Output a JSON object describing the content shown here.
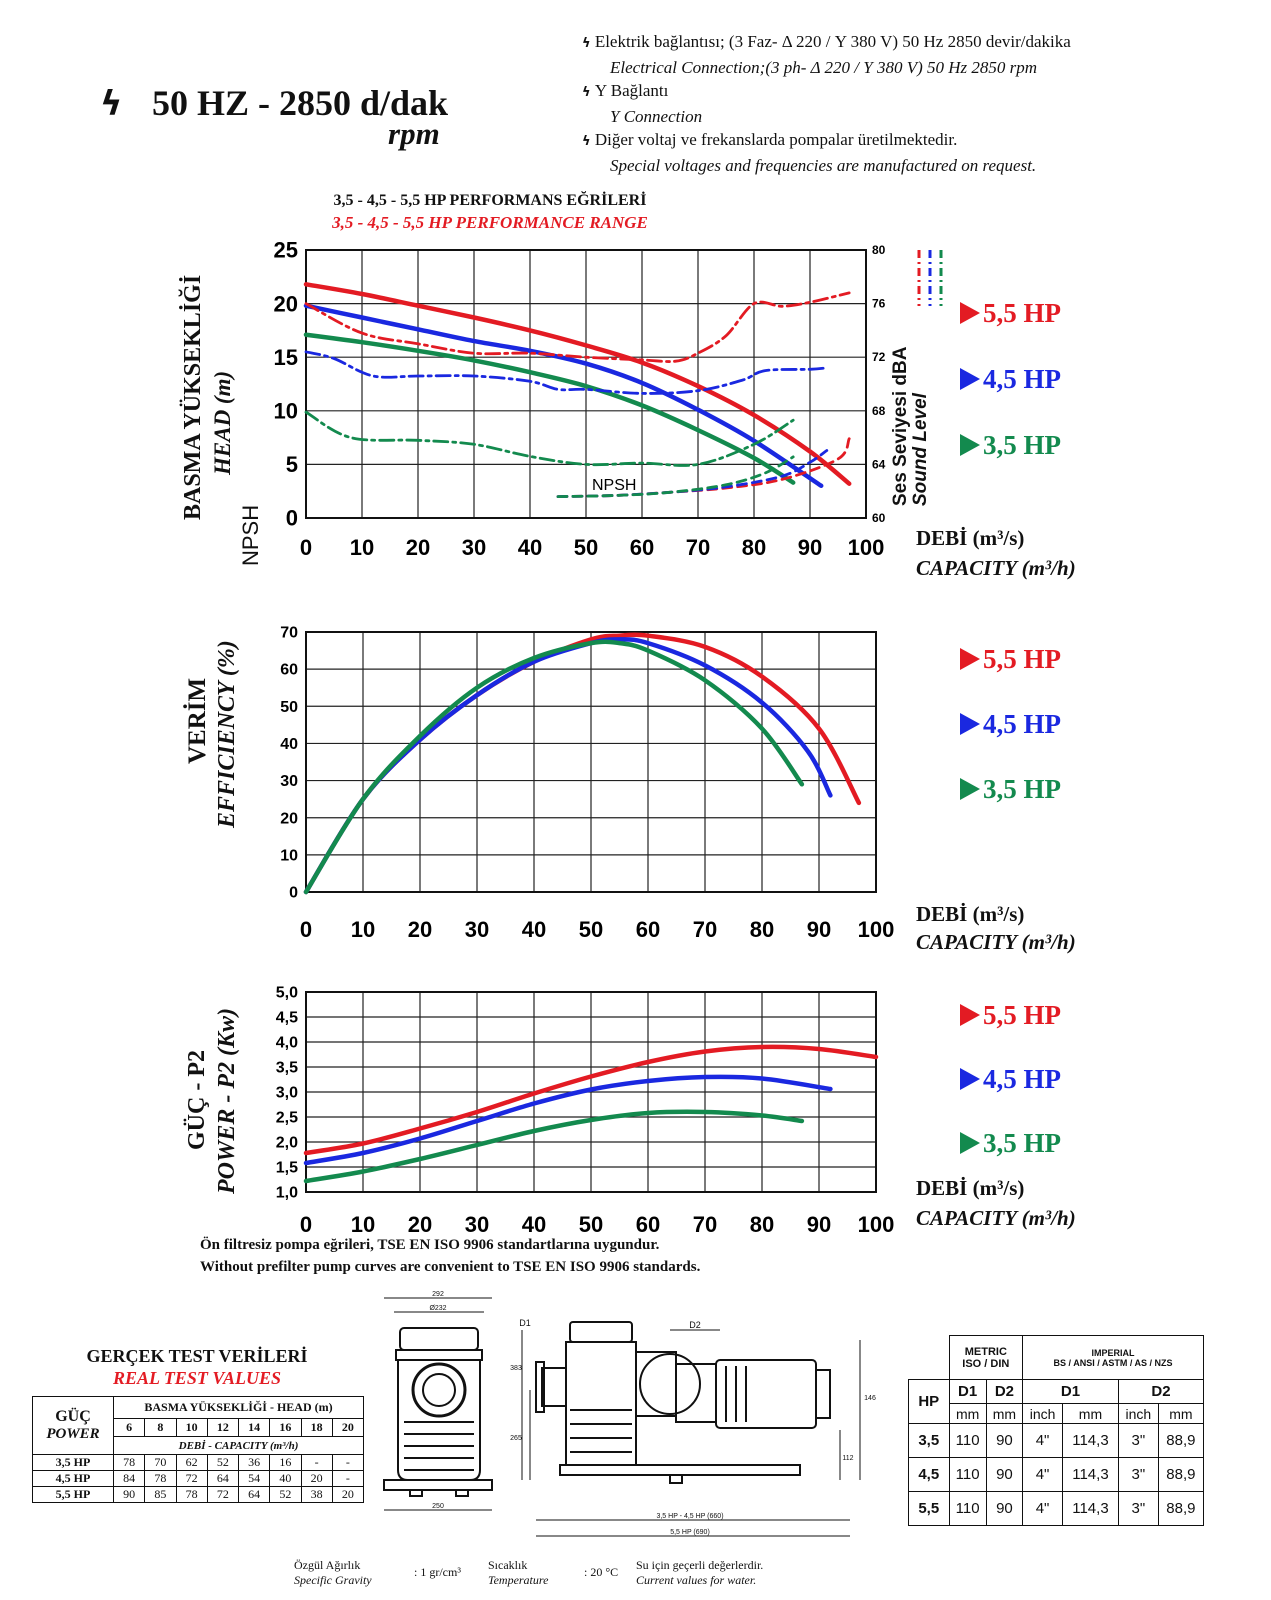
{
  "header": {
    "freq_title": "50 HZ - 2850 d/dak",
    "rpm": "rpm",
    "notes": [
      {
        "tr": "Elektrik bağlantısı; (3 Faz- Δ 220 / Y 380 V) 50 Hz 2850 devir/dakika",
        "en": "Electrical Connection;(3 ph- Δ 220 / Y 380 V) 50 Hz 2850 rpm"
      },
      {
        "tr": "Y Bağlantı",
        "en": "Y Connection"
      },
      {
        "tr": "Diğer voltaj ve frekanslarda pompalar üretilmektedir.",
        "en": "Special voltages and frequencies  are manufactured on request."
      }
    ]
  },
  "legend": {
    "hp55": "5,5 HP",
    "hp45": "4,5 HP",
    "hp35": "3,5 HP"
  },
  "colors": {
    "hp55": "#e31b23",
    "hp45": "#1a28e0",
    "hp35": "#138a4e"
  },
  "x_label_tr": "DEBİ (m³/s)",
  "x_label_en": "CAPACITY (m³/h)",
  "chart_data": [
    {
      "type": "line",
      "title": "3,5 - 4,5 - 5,5 HP PERFORMANS EĞRİLERİ",
      "subtitle": "3,5 - 4,5 - 5,5 HP PERFORMANCE RANGE",
      "ylabel_tr": "BASMA YÜKSEKLİĞİ",
      "ylabel_en": "HEAD (m)",
      "ylabel_npsh": "NPSH",
      "y2label_tr": "Ses Seviyesi dBA",
      "y2label_en": "Sound Level",
      "npsh_label": "NPSH",
      "xlim": [
        0,
        100
      ],
      "ylim": [
        0,
        25
      ],
      "y2lim": [
        60,
        80
      ],
      "x_ticks": [
        "0",
        "10",
        "20",
        "30",
        "40",
        "50",
        "60",
        "70",
        "80",
        "90",
        "100"
      ],
      "y_ticks": [
        "0",
        "5",
        "10",
        "15",
        "20",
        "25"
      ],
      "y2_ticks": [
        "60",
        "64",
        "68",
        "72",
        "76",
        "80"
      ],
      "series": [
        {
          "name": "5,5 HP",
          "kind": "head",
          "x": [
            0,
            10,
            20,
            30,
            40,
            50,
            60,
            70,
            80,
            90,
            97
          ],
          "y": [
            21.8,
            20.9,
            19.8,
            18.7,
            17.5,
            16.1,
            14.5,
            12.3,
            9.6,
            6.2,
            3.2
          ]
        },
        {
          "name": "4,5 HP",
          "kind": "head",
          "x": [
            0,
            10,
            20,
            30,
            40,
            50,
            60,
            70,
            80,
            92
          ],
          "y": [
            19.8,
            18.7,
            17.6,
            16.5,
            15.6,
            14.4,
            12.6,
            10.1,
            7.2,
            3.0
          ]
        },
        {
          "name": "3,5 HP",
          "kind": "head",
          "x": [
            0,
            10,
            20,
            30,
            40,
            50,
            60,
            70,
            80,
            87
          ],
          "y": [
            17.1,
            16.4,
            15.6,
            14.7,
            13.6,
            12.3,
            10.5,
            8.2,
            5.6,
            3.3
          ]
        },
        {
          "name": "5,5 HP",
          "kind": "sound",
          "x": [
            0,
            10,
            20,
            30,
            40,
            50,
            60,
            66,
            70,
            75,
            80,
            85,
            90,
            97
          ],
          "y": [
            76.0,
            73.8,
            73.0,
            72.3,
            72.3,
            72.0,
            71.8,
            71.7,
            72.3,
            73.6,
            76.0,
            75.8,
            76.1,
            76.8
          ]
        },
        {
          "name": "4,5 HP",
          "kind": "sound",
          "x": [
            0,
            5,
            12,
            20,
            30,
            40,
            45,
            50,
            60,
            70,
            78,
            82,
            90,
            93
          ],
          "y": [
            72.4,
            71.9,
            70.6,
            70.6,
            70.6,
            70.2,
            69.6,
            69.6,
            69.3,
            69.5,
            70.3,
            71.0,
            71.1,
            71.2
          ]
        },
        {
          "name": "3,5 HP",
          "kind": "sound",
          "x": [
            0,
            8,
            20,
            30,
            40,
            50,
            60,
            70,
            80,
            87
          ],
          "y": [
            67.9,
            66.0,
            65.8,
            65.5,
            64.6,
            64.0,
            64.1,
            64.0,
            65.5,
            67.3
          ]
        },
        {
          "name": "5,5 HP",
          "kind": "npsh",
          "x": [
            45,
            55,
            65,
            75,
            85,
            95,
            97
          ],
          "y": [
            2.0,
            2.1,
            2.4,
            2.8,
            3.6,
            5.5,
            7.4
          ]
        },
        {
          "name": "4,5 HP",
          "kind": "npsh",
          "x": [
            45,
            55,
            65,
            75,
            85,
            90,
            93
          ],
          "y": [
            2.0,
            2.1,
            2.4,
            2.9,
            3.9,
            5.2,
            6.3
          ]
        },
        {
          "name": "3,5 HP",
          "kind": "npsh",
          "x": [
            45,
            55,
            65,
            75,
            82,
            87
          ],
          "y": [
            2.0,
            2.1,
            2.4,
            3.1,
            4.2,
            5.7
          ]
        }
      ]
    },
    {
      "type": "line",
      "ylabel_tr": "VERİM",
      "ylabel_en": "EFFICIENCY (%)",
      "xlim": [
        0,
        100
      ],
      "ylim": [
        0,
        70
      ],
      "x_ticks": [
        "0",
        "10",
        "20",
        "30",
        "40",
        "50",
        "60",
        "70",
        "80",
        "90",
        "100"
      ],
      "y_ticks": [
        "0",
        "10",
        "20",
        "30",
        "40",
        "50",
        "60",
        "70"
      ],
      "series": [
        {
          "name": "5,5 HP",
          "x": [
            0,
            10,
            20,
            30,
            40,
            50,
            55,
            60,
            70,
            80,
            90,
            97
          ],
          "y": [
            0,
            25,
            41,
            53,
            62,
            68,
            69,
            69,
            66,
            58,
            44,
            24
          ]
        },
        {
          "name": "4,5 HP",
          "x": [
            0,
            10,
            20,
            30,
            40,
            50,
            55,
            60,
            70,
            80,
            88,
            92
          ],
          "y": [
            0,
            25,
            41,
            53,
            62,
            67,
            68,
            67,
            61,
            51,
            38,
            26
          ]
        },
        {
          "name": "3,5 HP",
          "x": [
            0,
            10,
            20,
            30,
            40,
            50,
            55,
            60,
            70,
            80,
            87
          ],
          "y": [
            0,
            25,
            42,
            55,
            63,
            67,
            67,
            65,
            57,
            44,
            29
          ]
        }
      ]
    },
    {
      "type": "line",
      "ylabel_tr": "GÜÇ - P2",
      "ylabel_en": "POWER - P2 (Kw)",
      "xlim": [
        0,
        100
      ],
      "ylim": [
        1.0,
        5.0
      ],
      "x_ticks": [
        "0",
        "10",
        "20",
        "30",
        "40",
        "50",
        "60",
        "70",
        "80",
        "90",
        "100"
      ],
      "y_ticks": [
        "1,0",
        "1,5",
        "2,0",
        "2,5",
        "3,0",
        "3,5",
        "4,0",
        "4,5",
        "5,0"
      ],
      "series": [
        {
          "name": "5,5 HP",
          "x": [
            0,
            10,
            20,
            30,
            40,
            50,
            60,
            70,
            80,
            90,
            100
          ],
          "y": [
            1.78,
            1.97,
            2.27,
            2.6,
            2.97,
            3.31,
            3.6,
            3.81,
            3.9,
            3.86,
            3.7
          ]
        },
        {
          "name": "4,5 HP",
          "x": [
            0,
            10,
            20,
            30,
            40,
            50,
            60,
            70,
            80,
            92
          ],
          "y": [
            1.58,
            1.78,
            2.07,
            2.42,
            2.77,
            3.05,
            3.22,
            3.3,
            3.27,
            3.06
          ]
        },
        {
          "name": "3,5 HP",
          "x": [
            0,
            10,
            20,
            30,
            40,
            50,
            60,
            70,
            80,
            87
          ],
          "y": [
            1.22,
            1.41,
            1.66,
            1.94,
            2.22,
            2.44,
            2.58,
            2.6,
            2.53,
            2.42
          ]
        }
      ]
    }
  ],
  "standard_note": {
    "tr": "Ön filtresiz pompa eğrileri, TSE EN ISO 9906 standartlarına uygundur.",
    "en": "Without prefilter pump curves are convenient to TSE EN ISO 9906 standards."
  },
  "test_table": {
    "title_tr": "GERÇEK TEST VERİLERİ",
    "title_en": "REAL TEST VALUES",
    "power_tr": "GÜÇ",
    "power_en": "POWER",
    "head_header": "BASMA YÜKSEKLİĞİ - HEAD (m)",
    "capacity_header": "DEBİ - CAPACITY (m³/h)",
    "heads": [
      "6",
      "8",
      "10",
      "12",
      "14",
      "16",
      "18",
      "20"
    ],
    "rows": [
      {
        "hp": "3,5 HP",
        "values": [
          "78",
          "70",
          "62",
          "52",
          "36",
          "16",
          "-",
          "-"
        ]
      },
      {
        "hp": "4,5 HP",
        "values": [
          "84",
          "78",
          "72",
          "64",
          "54",
          "40",
          "20",
          "-"
        ]
      },
      {
        "hp": "5,5 HP",
        "values": [
          "90",
          "85",
          "78",
          "72",
          "64",
          "52",
          "38",
          "20"
        ]
      }
    ]
  },
  "drawing": {
    "dim_top": "292",
    "dim_phi": "Ø232",
    "dim_base": "250",
    "d1": "D1",
    "d2": "D2",
    "h_left": "383",
    "h_left2": "265",
    "h_right": "146",
    "h_right2": "112",
    "len_a": "3,5 HP - 4,5 HP (660)",
    "len_b": "5,5 HP (690)"
  },
  "dim_table": {
    "metric": "METRIC",
    "metric_sub": "ISO / DIN",
    "imperial": "IMPERIAL",
    "imperial_sub": "BS / ANSI / ASTM / AS /  NZS",
    "hp": "HP",
    "d1": "D1",
    "d2": "D2",
    "units": [
      "mm",
      "mm",
      "inch",
      "mm",
      "inch",
      "mm"
    ],
    "rows": [
      {
        "hp": "3,5",
        "values": [
          "110",
          "90",
          "4\"",
          "114,3",
          "3\"",
          "88,9"
        ]
      },
      {
        "hp": "4,5",
        "values": [
          "110",
          "90",
          "4\"",
          "114,3",
          "3\"",
          "88,9"
        ]
      },
      {
        "hp": "5,5",
        "values": [
          "110",
          "90",
          "4\"",
          "114,3",
          "3\"",
          "88,9"
        ]
      }
    ]
  },
  "footer": {
    "gravity_tr": "Özgül Ağırlık",
    "gravity_en": "Specific Gravity",
    "gravity_val": ": 1 gr/cm³",
    "temp_tr": "Sıcaklık",
    "temp_en": "Temperature",
    "temp_val": ": 20 °C",
    "water_tr": "Su için geçerli değerlerdir.",
    "water_en": "Current values for water."
  }
}
